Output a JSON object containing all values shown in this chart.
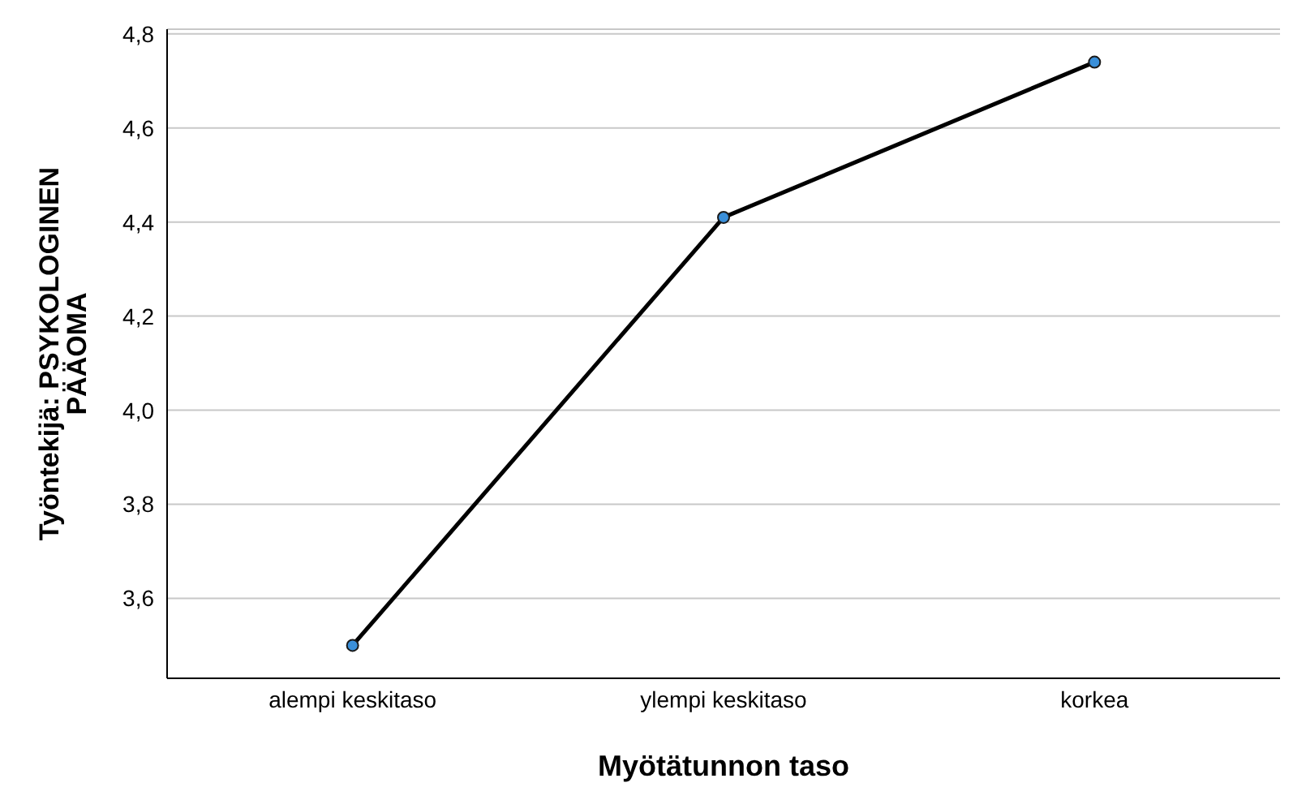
{
  "chart_data": {
    "type": "line",
    "xlabel": "Myötätunnon taso",
    "ylabel": "Työntekijä: PSYKOLOGINEN PÄÄOMA",
    "categories": [
      "alempi keskitaso",
      "ylempi keskitaso",
      "korkea"
    ],
    "series": [
      {
        "color": "#000000",
        "values": [
          3.5,
          4.41,
          4.74
        ]
      }
    ],
    "ylim": [
      3.43,
      4.81
    ],
    "yticks": [
      {
        "value": 3.6,
        "label": "3,6"
      },
      {
        "value": 3.8,
        "label": "3,8"
      },
      {
        "value": 4.0,
        "label": "4,0"
      },
      {
        "value": 4.2,
        "label": "4,2"
      },
      {
        "value": 4.4,
        "label": "4,4"
      },
      {
        "value": 4.6,
        "label": "4,6"
      },
      {
        "value": 4.8,
        "label": "4,8"
      }
    ],
    "grid": "y",
    "marker": "circle",
    "line_style": "solid",
    "legend": false
  }
}
